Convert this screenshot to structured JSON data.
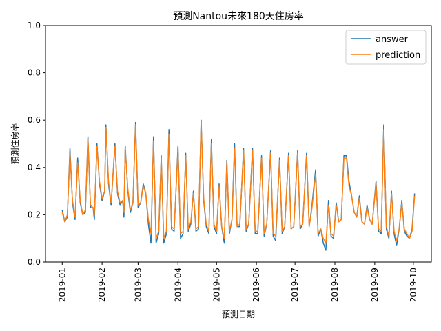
{
  "chart_data": {
    "type": "line",
    "title": "預測Nantou未來180天住房率",
    "xlabel": "預測日期",
    "ylabel": "預測住房率",
    "ylim": [
      0,
      1.0
    ],
    "xlim": [
      "2018-12-19",
      "2019-10-15"
    ],
    "yticks": [
      0.0,
      0.2,
      0.4,
      0.6,
      0.8,
      1.0
    ],
    "ytick_labels": [
      "0.0",
      "0.2",
      "0.4",
      "0.6",
      "0.8",
      "1.0"
    ],
    "xticks": [
      "2019-01-01",
      "2019-02-01",
      "2019-03-01",
      "2019-04-01",
      "2019-05-01",
      "2019-06-01",
      "2019-07-01",
      "2019-08-01",
      "2019-09-01",
      "2019-10-01"
    ],
    "xtick_labels": [
      "2019-01",
      "2019-02",
      "2019-03",
      "2019-04",
      "2019-05",
      "2019-06",
      "2019-07",
      "2019-08",
      "2019-09",
      "2019-10"
    ],
    "legend_position": "top-right",
    "grid": false,
    "series": [
      {
        "name": "answer",
        "color": "#1f77b4",
        "points": [
          [
            "2019-01-01",
            0.22
          ],
          [
            "2019-01-03",
            0.17
          ],
          [
            "2019-01-05",
            0.19
          ],
          [
            "2019-01-07",
            0.48
          ],
          [
            "2019-01-09",
            0.25
          ],
          [
            "2019-01-11",
            0.18
          ],
          [
            "2019-01-13",
            0.44
          ],
          [
            "2019-01-15",
            0.25
          ],
          [
            "2019-01-17",
            0.2
          ],
          [
            "2019-01-19",
            0.21
          ],
          [
            "2019-01-21",
            0.53
          ],
          [
            "2019-01-23",
            0.23
          ],
          [
            "2019-01-25",
            0.23
          ],
          [
            "2019-01-26",
            0.18
          ],
          [
            "2019-01-28",
            0.5
          ],
          [
            "2019-01-30",
            0.33
          ],
          [
            "2019-02-01",
            0.26
          ],
          [
            "2019-02-03",
            0.3
          ],
          [
            "2019-02-04",
            0.58
          ],
          [
            "2019-02-06",
            0.33
          ],
          [
            "2019-02-08",
            0.24
          ],
          [
            "2019-02-11",
            0.5
          ],
          [
            "2019-02-13",
            0.29
          ],
          [
            "2019-02-15",
            0.24
          ],
          [
            "2019-02-17",
            0.26
          ],
          [
            "2019-02-18",
            0.19
          ],
          [
            "2019-02-19",
            0.49
          ],
          [
            "2019-02-21",
            0.3
          ],
          [
            "2019-02-23",
            0.21
          ],
          [
            "2019-02-25",
            0.25
          ],
          [
            "2019-02-27",
            0.59
          ],
          [
            "2019-03-01",
            0.23
          ],
          [
            "2019-03-03",
            0.25
          ],
          [
            "2019-03-05",
            0.33
          ],
          [
            "2019-03-07",
            0.29
          ],
          [
            "2019-03-09",
            0.16
          ],
          [
            "2019-03-11",
            0.08
          ],
          [
            "2019-03-13",
            0.53
          ],
          [
            "2019-03-15",
            0.08
          ],
          [
            "2019-03-17",
            0.12
          ],
          [
            "2019-03-19",
            0.45
          ],
          [
            "2019-03-21",
            0.08
          ],
          [
            "2019-03-23",
            0.12
          ],
          [
            "2019-03-25",
            0.56
          ],
          [
            "2019-03-27",
            0.14
          ],
          [
            "2019-03-29",
            0.13
          ],
          [
            "2019-04-01",
            0.49
          ],
          [
            "2019-04-03",
            0.1
          ],
          [
            "2019-04-05",
            0.12
          ],
          [
            "2019-04-07",
            0.46
          ],
          [
            "2019-04-09",
            0.13
          ],
          [
            "2019-04-11",
            0.16
          ],
          [
            "2019-04-13",
            0.3
          ],
          [
            "2019-04-15",
            0.13
          ],
          [
            "2019-04-17",
            0.14
          ],
          [
            "2019-04-19",
            0.6
          ],
          [
            "2019-04-21",
            0.26
          ],
          [
            "2019-04-23",
            0.15
          ],
          [
            "2019-04-25",
            0.12
          ],
          [
            "2019-04-27",
            0.52
          ],
          [
            "2019-04-29",
            0.15
          ],
          [
            "2019-05-01",
            0.12
          ],
          [
            "2019-05-03",
            0.33
          ],
          [
            "2019-05-05",
            0.15
          ],
          [
            "2019-05-07",
            0.08
          ],
          [
            "2019-05-09",
            0.43
          ],
          [
            "2019-05-11",
            0.12
          ],
          [
            "2019-05-13",
            0.18
          ],
          [
            "2019-05-15",
            0.5
          ],
          [
            "2019-05-17",
            0.15
          ],
          [
            "2019-05-19",
            0.15
          ],
          [
            "2019-05-22",
            0.48
          ],
          [
            "2019-05-24",
            0.13
          ],
          [
            "2019-05-26",
            0.16
          ],
          [
            "2019-05-29",
            0.48
          ],
          [
            "2019-05-31",
            0.12
          ],
          [
            "2019-06-02",
            0.12
          ],
          [
            "2019-06-05",
            0.45
          ],
          [
            "2019-06-07",
            0.11
          ],
          [
            "2019-06-09",
            0.16
          ],
          [
            "2019-06-12",
            0.47
          ],
          [
            "2019-06-14",
            0.11
          ],
          [
            "2019-06-16",
            0.09
          ],
          [
            "2019-06-19",
            0.44
          ],
          [
            "2019-06-21",
            0.12
          ],
          [
            "2019-06-23",
            0.15
          ],
          [
            "2019-06-26",
            0.46
          ],
          [
            "2019-06-28",
            0.14
          ],
          [
            "2019-06-30",
            0.15
          ],
          [
            "2019-07-03",
            0.47
          ],
          [
            "2019-07-05",
            0.14
          ],
          [
            "2019-07-07",
            0.16
          ],
          [
            "2019-07-10",
            0.46
          ],
          [
            "2019-07-12",
            0.15
          ],
          [
            "2019-07-14",
            0.23
          ],
          [
            "2019-07-17",
            0.39
          ],
          [
            "2019-07-19",
            0.11
          ],
          [
            "2019-07-21",
            0.14
          ],
          [
            "2019-07-23",
            0.08
          ],
          [
            "2019-07-25",
            0.05
          ],
          [
            "2019-07-27",
            0.26
          ],
          [
            "2019-07-29",
            0.11
          ],
          [
            "2019-07-31",
            0.1
          ],
          [
            "2019-08-02",
            0.25
          ],
          [
            "2019-08-04",
            0.17
          ],
          [
            "2019-08-06",
            0.18
          ],
          [
            "2019-08-08",
            0.45
          ],
          [
            "2019-08-10",
            0.45
          ],
          [
            "2019-08-12",
            0.34
          ],
          [
            "2019-08-14",
            0.28
          ],
          [
            "2019-08-16",
            0.21
          ],
          [
            "2019-08-18",
            0.19
          ],
          [
            "2019-08-20",
            0.28
          ],
          [
            "2019-08-22",
            0.17
          ],
          [
            "2019-08-24",
            0.16
          ],
          [
            "2019-08-26",
            0.24
          ],
          [
            "2019-08-28",
            0.18
          ],
          [
            "2019-08-30",
            0.16
          ],
          [
            "2019-09-02",
            0.34
          ],
          [
            "2019-09-04",
            0.13
          ],
          [
            "2019-09-06",
            0.12
          ],
          [
            "2019-09-08",
            0.58
          ],
          [
            "2019-09-10",
            0.14
          ],
          [
            "2019-09-12",
            0.1
          ],
          [
            "2019-09-14",
            0.3
          ],
          [
            "2019-09-16",
            0.12
          ],
          [
            "2019-09-18",
            0.07
          ],
          [
            "2019-09-20",
            0.14
          ],
          [
            "2019-09-22",
            0.26
          ],
          [
            "2019-09-24",
            0.13
          ],
          [
            "2019-09-26",
            0.11
          ],
          [
            "2019-09-28",
            0.1
          ],
          [
            "2019-09-30",
            0.14
          ],
          [
            "2019-10-02",
            0.29
          ]
        ]
      },
      {
        "name": "prediction",
        "color": "#ff7f0e",
        "points": [
          [
            "2019-01-01",
            0.21
          ],
          [
            "2019-01-03",
            0.17
          ],
          [
            "2019-01-05",
            0.2
          ],
          [
            "2019-01-07",
            0.46
          ],
          [
            "2019-01-09",
            0.26
          ],
          [
            "2019-01-11",
            0.19
          ],
          [
            "2019-01-13",
            0.42
          ],
          [
            "2019-01-15",
            0.26
          ],
          [
            "2019-01-17",
            0.2
          ],
          [
            "2019-01-19",
            0.22
          ],
          [
            "2019-01-21",
            0.52
          ],
          [
            "2019-01-23",
            0.24
          ],
          [
            "2019-01-25",
            0.23
          ],
          [
            "2019-01-26",
            0.2
          ],
          [
            "2019-01-28",
            0.49
          ],
          [
            "2019-01-30",
            0.34
          ],
          [
            "2019-02-01",
            0.27
          ],
          [
            "2019-02-03",
            0.3
          ],
          [
            "2019-02-04",
            0.57
          ],
          [
            "2019-02-06",
            0.34
          ],
          [
            "2019-02-08",
            0.25
          ],
          [
            "2019-02-11",
            0.49
          ],
          [
            "2019-02-13",
            0.3
          ],
          [
            "2019-02-15",
            0.25
          ],
          [
            "2019-02-17",
            0.26
          ],
          [
            "2019-02-18",
            0.21
          ],
          [
            "2019-02-19",
            0.48
          ],
          [
            "2019-02-21",
            0.31
          ],
          [
            "2019-02-23",
            0.22
          ],
          [
            "2019-02-25",
            0.25
          ],
          [
            "2019-02-27",
            0.58
          ],
          [
            "2019-03-01",
            0.24
          ],
          [
            "2019-03-03",
            0.25
          ],
          [
            "2019-03-05",
            0.32
          ],
          [
            "2019-03-07",
            0.29
          ],
          [
            "2019-03-09",
            0.18
          ],
          [
            "2019-03-11",
            0.12
          ],
          [
            "2019-03-13",
            0.51
          ],
          [
            "2019-03-15",
            0.1
          ],
          [
            "2019-03-17",
            0.13
          ],
          [
            "2019-03-19",
            0.44
          ],
          [
            "2019-03-21",
            0.1
          ],
          [
            "2019-03-23",
            0.13
          ],
          [
            "2019-03-25",
            0.54
          ],
          [
            "2019-03-27",
            0.15
          ],
          [
            "2019-03-29",
            0.14
          ],
          [
            "2019-04-01",
            0.47
          ],
          [
            "2019-04-03",
            0.12
          ],
          [
            "2019-04-05",
            0.13
          ],
          [
            "2019-04-07",
            0.45
          ],
          [
            "2019-04-09",
            0.14
          ],
          [
            "2019-04-11",
            0.17
          ],
          [
            "2019-04-13",
            0.29
          ],
          [
            "2019-04-15",
            0.14
          ],
          [
            "2019-04-17",
            0.15
          ],
          [
            "2019-04-19",
            0.59
          ],
          [
            "2019-04-21",
            0.27
          ],
          [
            "2019-04-23",
            0.16
          ],
          [
            "2019-04-25",
            0.13
          ],
          [
            "2019-04-27",
            0.5
          ],
          [
            "2019-04-29",
            0.16
          ],
          [
            "2019-05-01",
            0.13
          ],
          [
            "2019-05-03",
            0.32
          ],
          [
            "2019-05-05",
            0.15
          ],
          [
            "2019-05-07",
            0.1
          ],
          [
            "2019-05-09",
            0.42
          ],
          [
            "2019-05-11",
            0.13
          ],
          [
            "2019-05-13",
            0.18
          ],
          [
            "2019-05-15",
            0.48
          ],
          [
            "2019-05-17",
            0.15
          ],
          [
            "2019-05-19",
            0.16
          ],
          [
            "2019-05-22",
            0.47
          ],
          [
            "2019-05-24",
            0.14
          ],
          [
            "2019-05-26",
            0.16
          ],
          [
            "2019-05-29",
            0.47
          ],
          [
            "2019-05-31",
            0.13
          ],
          [
            "2019-06-02",
            0.13
          ],
          [
            "2019-06-05",
            0.44
          ],
          [
            "2019-06-07",
            0.12
          ],
          [
            "2019-06-09",
            0.16
          ],
          [
            "2019-06-12",
            0.46
          ],
          [
            "2019-06-14",
            0.12
          ],
          [
            "2019-06-16",
            0.11
          ],
          [
            "2019-06-19",
            0.43
          ],
          [
            "2019-06-21",
            0.13
          ],
          [
            "2019-06-23",
            0.15
          ],
          [
            "2019-06-26",
            0.45
          ],
          [
            "2019-06-28",
            0.14
          ],
          [
            "2019-06-30",
            0.15
          ],
          [
            "2019-07-03",
            0.46
          ],
          [
            "2019-07-05",
            0.15
          ],
          [
            "2019-07-07",
            0.16
          ],
          [
            "2019-07-10",
            0.45
          ],
          [
            "2019-07-12",
            0.15
          ],
          [
            "2019-07-14",
            0.22
          ],
          [
            "2019-07-17",
            0.37
          ],
          [
            "2019-07-19",
            0.12
          ],
          [
            "2019-07-21",
            0.14
          ],
          [
            "2019-07-23",
            0.1
          ],
          [
            "2019-07-25",
            0.08
          ],
          [
            "2019-07-27",
            0.24
          ],
          [
            "2019-07-29",
            0.12
          ],
          [
            "2019-07-31",
            0.11
          ],
          [
            "2019-08-02",
            0.24
          ],
          [
            "2019-08-04",
            0.17
          ],
          [
            "2019-08-06",
            0.18
          ],
          [
            "2019-08-08",
            0.44
          ],
          [
            "2019-08-10",
            0.44
          ],
          [
            "2019-08-12",
            0.32
          ],
          [
            "2019-08-14",
            0.28
          ],
          [
            "2019-08-16",
            0.21
          ],
          [
            "2019-08-18",
            0.19
          ],
          [
            "2019-08-20",
            0.27
          ],
          [
            "2019-08-22",
            0.17
          ],
          [
            "2019-08-24",
            0.16
          ],
          [
            "2019-08-26",
            0.23
          ],
          [
            "2019-08-28",
            0.18
          ],
          [
            "2019-08-30",
            0.16
          ],
          [
            "2019-09-02",
            0.33
          ],
          [
            "2019-09-04",
            0.14
          ],
          [
            "2019-09-06",
            0.13
          ],
          [
            "2019-09-08",
            0.56
          ],
          [
            "2019-09-10",
            0.15
          ],
          [
            "2019-09-12",
            0.11
          ],
          [
            "2019-09-14",
            0.29
          ],
          [
            "2019-09-16",
            0.13
          ],
          [
            "2019-09-18",
            0.09
          ],
          [
            "2019-09-20",
            0.14
          ],
          [
            "2019-09-22",
            0.25
          ],
          [
            "2019-09-24",
            0.14
          ],
          [
            "2019-09-26",
            0.12
          ],
          [
            "2019-09-28",
            0.1
          ],
          [
            "2019-09-30",
            0.13
          ],
          [
            "2019-10-02",
            0.28
          ]
        ]
      }
    ]
  }
}
